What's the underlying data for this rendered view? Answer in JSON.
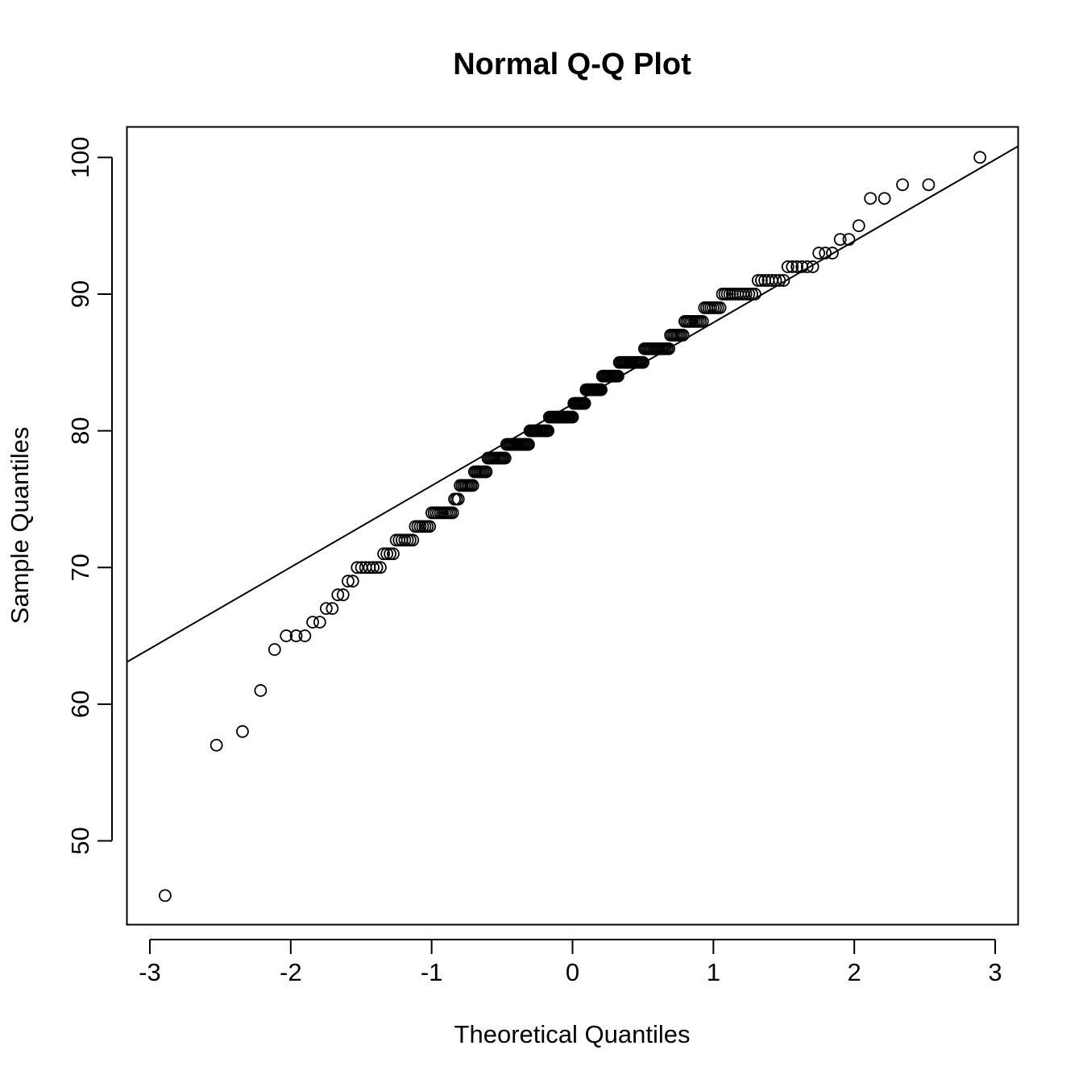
{
  "chart_data": {
    "type": "scatter",
    "title": "Normal Q-Q Plot",
    "xlabel": "Theoretical Quantiles",
    "ylabel": "Sample Quantiles",
    "xlim": [
      -3.16,
      3.16
    ],
    "ylim": [
      43.9,
      102.2
    ],
    "x_ticks": [
      -3,
      -2,
      -1,
      0,
      1,
      2,
      3
    ],
    "x_tick_labels": [
      "-3",
      "-2",
      "-1",
      "0",
      "1",
      "2",
      "3"
    ],
    "y_ticks": [
      50,
      60,
      70,
      80,
      90,
      100
    ],
    "y_tick_labels": [
      "50",
      "60",
      "70",
      "80",
      "90",
      "100"
    ],
    "grid": false,
    "reference_line": {
      "points": [
        [
          -3.16,
          63.1
        ],
        [
          3.16,
          100.8
        ]
      ]
    },
    "sample_values": [
      46,
      57,
      58,
      61,
      64,
      65,
      65,
      65,
      66,
      66,
      67,
      67,
      68,
      68,
      69,
      69,
      70,
      70,
      70,
      70,
      70,
      70,
      70,
      71,
      71,
      71,
      71,
      72,
      72,
      72,
      72,
      72,
      72,
      72,
      73,
      73,
      73,
      73,
      73,
      73,
      73,
      74,
      74,
      74,
      74,
      74,
      74,
      74,
      74,
      74,
      74,
      74,
      75,
      75,
      75,
      76,
      76,
      76,
      76,
      76,
      76,
      76,
      76,
      77,
      77,
      77,
      77,
      77,
      77,
      77,
      77,
      78,
      78,
      78,
      78,
      78,
      78,
      78,
      78,
      78,
      78,
      78,
      78,
      79,
      79,
      79,
      79,
      79,
      79,
      79,
      79,
      79,
      79,
      79,
      79,
      79,
      79,
      79,
      79,
      80,
      80,
      80,
      80,
      80,
      80,
      80,
      80,
      80,
      80,
      80,
      80,
      80,
      80,
      81,
      81,
      81,
      81,
      81,
      81,
      81,
      81,
      81,
      81,
      81,
      81,
      81,
      81,
      81,
      81,
      81,
      81,
      82,
      82,
      82,
      82,
      82,
      82,
      82,
      82,
      82,
      83,
      83,
      83,
      83,
      83,
      83,
      83,
      83,
      83,
      83,
      83,
      83,
      84,
      84,
      84,
      84,
      84,
      84,
      84,
      84,
      84,
      84,
      84,
      84,
      85,
      85,
      85,
      85,
      85,
      85,
      85,
      85,
      85,
      85,
      85,
      85,
      85,
      85,
      85,
      85,
      85,
      86,
      86,
      86,
      86,
      86,
      86,
      86,
      86,
      86,
      86,
      86,
      86,
      86,
      86,
      86,
      86,
      87,
      87,
      87,
      87,
      87,
      87,
      87,
      87,
      88,
      88,
      88,
      88,
      88,
      88,
      88,
      88,
      88,
      88,
      89,
      89,
      89,
      89,
      89,
      89,
      89,
      89,
      90,
      90,
      90,
      90,
      90,
      90,
      90,
      90,
      90,
      90,
      90,
      90,
      90,
      91,
      91,
      91,
      91,
      91,
      91,
      91,
      91,
      92,
      92,
      92,
      92,
      92,
      92,
      93,
      93,
      93,
      94,
      94,
      95,
      97,
      97,
      98,
      98,
      100
    ]
  }
}
